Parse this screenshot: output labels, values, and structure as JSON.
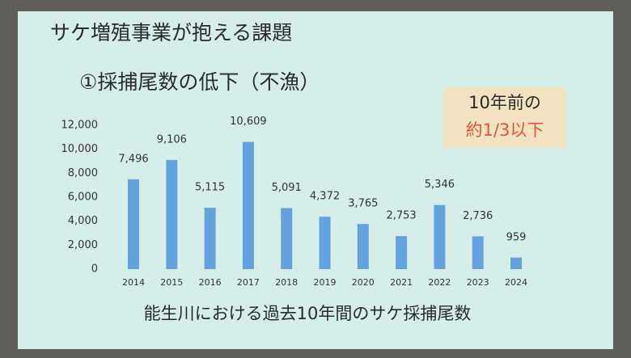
{
  "chart_data": {
    "type": "bar",
    "title": "サケ増殖事業が抱える課題",
    "subtitle": "①採捕尾数の低下（不漁）",
    "annotations": [
      "10年前の",
      "約1/3以下"
    ],
    "caption": "能生川における過去10年間のサケ採捕尾数",
    "categories": [
      "2014",
      "2015",
      "2016",
      "2017",
      "2018",
      "2019",
      "2020",
      "2021",
      "2022",
      "2023",
      "2024"
    ],
    "values": [
      7496,
      9106,
      5115,
      10609,
      5091,
      4372,
      3765,
      2753,
      5346,
      2736,
      959
    ],
    "value_labels": [
      "7,496",
      "9,106",
      "5,115",
      "10,609",
      "5,091",
      "4,372",
      "3,765",
      "2,753",
      "5,346",
      "2,736",
      "959"
    ],
    "color": "#64a2de",
    "ylim": [
      0,
      12000
    ],
    "yticks": [
      0,
      {
        "value": 2000,
        "label": "2,000"
      },
      {
        "value": 4000,
        "label": "4,000"
      },
      {
        "value": 6000,
        "label": "6,000"
      },
      {
        "value": 8000,
        "label": "8,000"
      },
      {
        "value": 10000,
        "label": "10,000"
      },
      {
        "value": 12000,
        "label": "12,000"
      }
    ]
  }
}
